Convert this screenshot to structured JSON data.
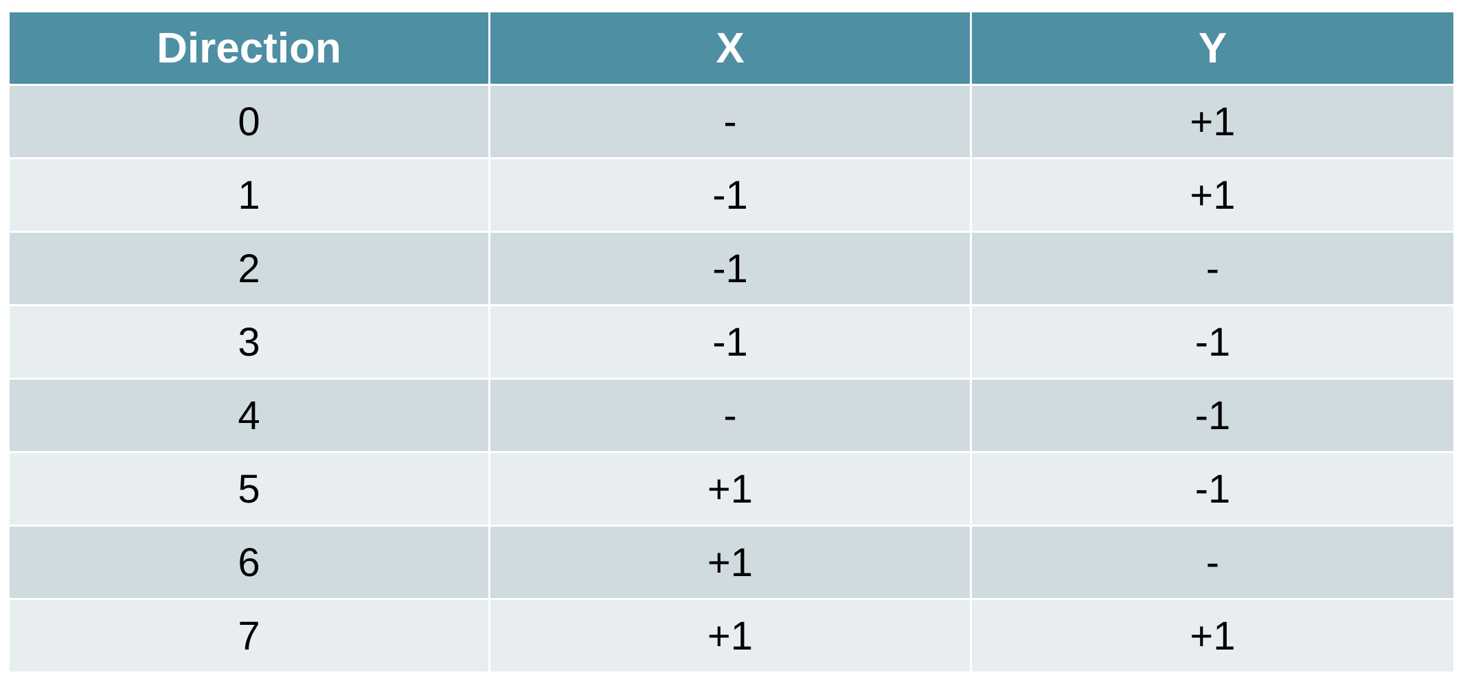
{
  "table": {
    "headers": [
      "Direction",
      "X",
      "Y"
    ],
    "rows": [
      [
        "0",
        "-",
        "+1"
      ],
      [
        "1",
        "-1",
        "+1"
      ],
      [
        "2",
        "-1",
        "-"
      ],
      [
        "3",
        "-1",
        "-1"
      ],
      [
        "4",
        "-",
        "-1"
      ],
      [
        "5",
        "+1",
        "-1"
      ],
      [
        "6",
        "+1",
        "-"
      ],
      [
        "7",
        "+1",
        "+1"
      ]
    ]
  },
  "colors": {
    "header_bg": "#4e8fa3",
    "row_dark": "#d0dbe0",
    "row_light": "#e8edf0",
    "header_text": "#ffffff",
    "cell_text": "#000000"
  }
}
